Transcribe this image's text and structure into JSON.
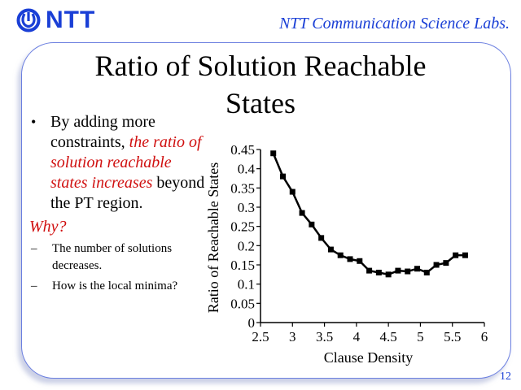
{
  "header": {
    "logo_text": "NTT",
    "labs": "NTT Communication Science Labs."
  },
  "slide": {
    "title_line1": "Ratio of Solution Reachable",
    "title_line2": "States",
    "bullet": {
      "marker": "•",
      "text_start": "By adding more constraints, ",
      "emphasis": "the ratio of solution reachable states increases",
      "text_end": " beyond the PT region."
    },
    "why": "Why?",
    "subbullets": [
      {
        "marker": "–",
        "text": "The number of solutions decreases."
      },
      {
        "marker": "–",
        "text": "How is the local minima?"
      }
    ],
    "page_number": "12"
  },
  "chart_data": {
    "type": "line",
    "xlabel": "Clause Density",
    "ylabel": "Ratio of Reachable States",
    "xlim": [
      2.5,
      6
    ],
    "ylim": [
      0,
      0.45
    ],
    "xticks": [
      "2.5",
      "3",
      "3.5",
      "4",
      "4.5",
      "5",
      "5.5",
      "6"
    ],
    "xtick_values": [
      2.5,
      3,
      3.5,
      4,
      4.5,
      5,
      5.5,
      6
    ],
    "yticks": [
      "0",
      "0.05",
      "0.1",
      "0.15",
      "0.2",
      "0.25",
      "0.3",
      "0.35",
      "0.4",
      "0.45"
    ],
    "ytick_values": [
      0,
      0.05,
      0.1,
      0.15,
      0.2,
      0.25,
      0.3,
      0.35,
      0.4,
      0.45
    ],
    "series": [
      {
        "color": "#000000",
        "marker": "square",
        "x": [
          2.7,
          2.85,
          3.0,
          3.15,
          3.3,
          3.45,
          3.6,
          3.75,
          3.9,
          4.05,
          4.2,
          4.35,
          4.5,
          4.65,
          4.8,
          4.95,
          5.1,
          5.25,
          5.4,
          5.55,
          5.7
        ],
        "values": [
          0.44,
          0.38,
          0.34,
          0.285,
          0.255,
          0.22,
          0.19,
          0.175,
          0.165,
          0.16,
          0.135,
          0.13,
          0.125,
          0.135,
          0.133,
          0.14,
          0.13,
          0.15,
          0.155,
          0.175,
          0.175
        ]
      }
    ]
  },
  "colors": {
    "brand": "#1a3fd6",
    "emphasis": "#d01010",
    "frame": "#6b7fe0"
  }
}
